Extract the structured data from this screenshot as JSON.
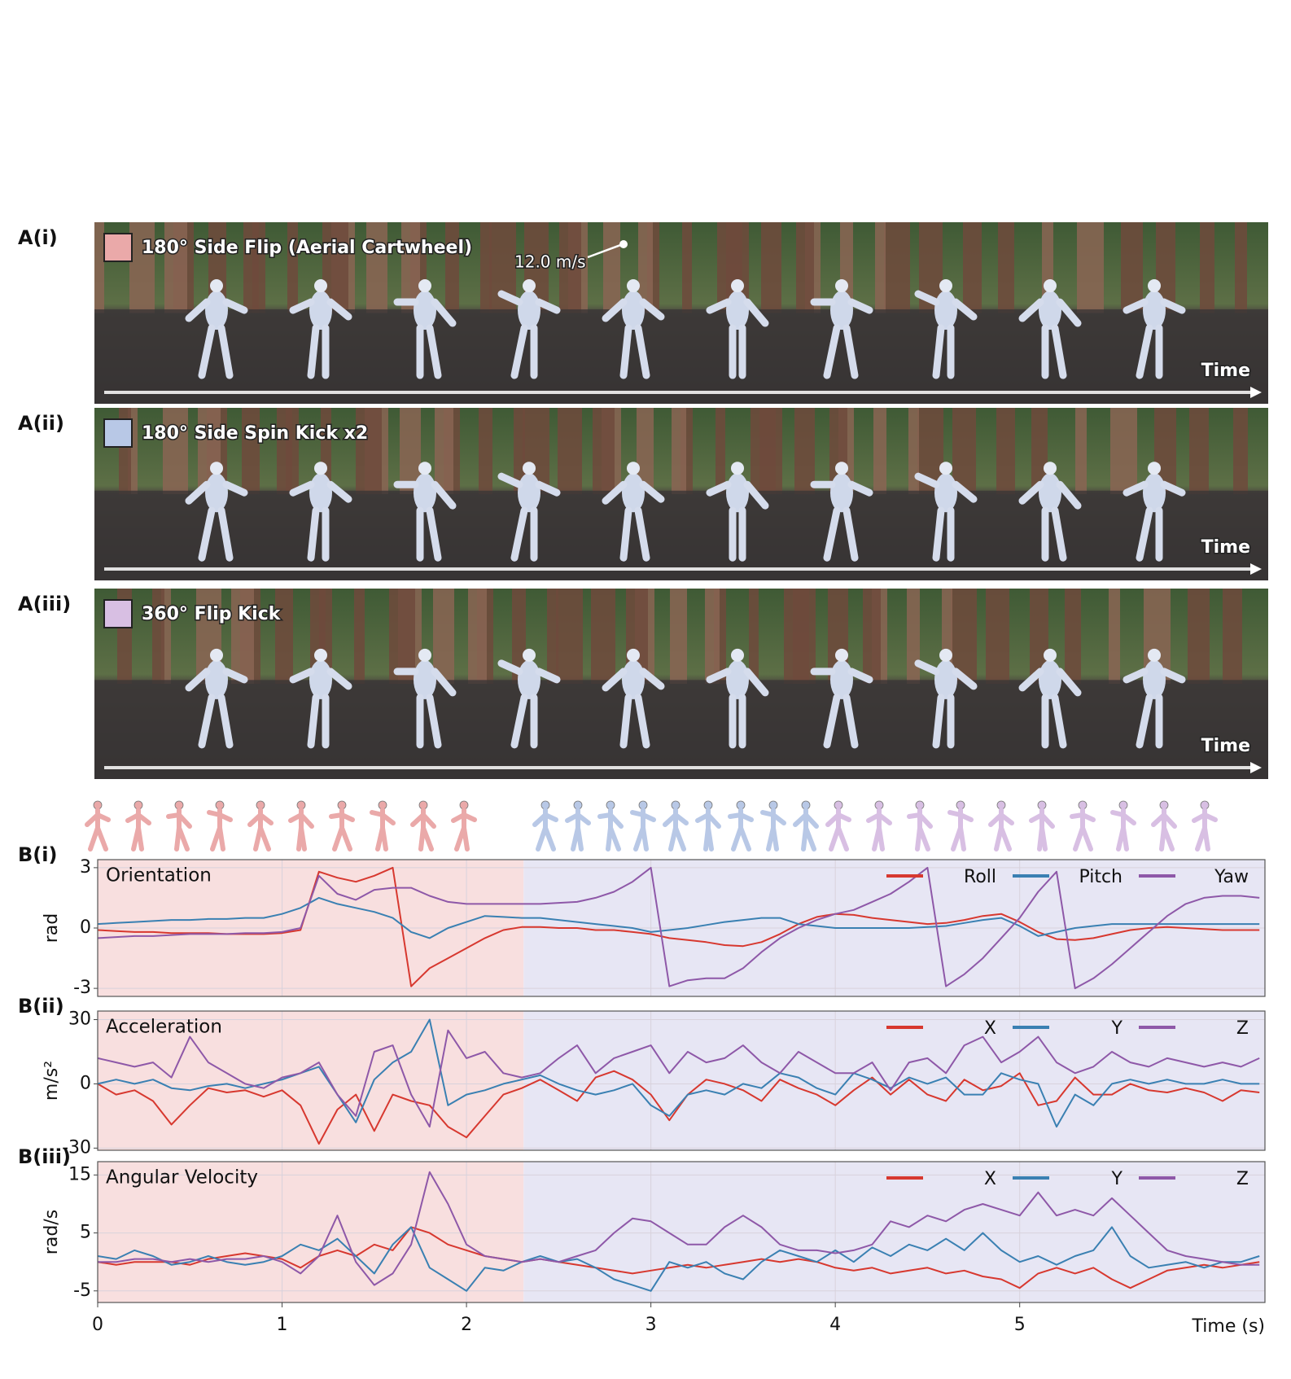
{
  "photo_panels": [
    {
      "label": "A(i)",
      "title": "180° Side Flip (Aerial Cartwheel)",
      "color": "#eaa9a9",
      "annotation": "12.0 m/s",
      "arrow_label": "Time"
    },
    {
      "label": "A(ii)",
      "title": "180° Side Spin Kick x2",
      "color": "#b8c8e6",
      "arrow_label": "Time"
    },
    {
      "label": "A(iii)",
      "title": "360° Flip Kick",
      "color": "#d8bfe3",
      "arrow_label": "Time"
    }
  ],
  "chart_data": [
    {
      "type": "line",
      "panel_label": "B(i)",
      "title": "Orientation",
      "y_label": "rad",
      "xlim": [
        0,
        6.33
      ],
      "ylim": [
        -3.4,
        3.4
      ],
      "xticks": [
        0,
        1,
        2,
        3,
        4,
        5
      ],
      "yticks": [
        -3,
        0,
        3
      ],
      "grid": true,
      "legend": "upper right",
      "shaded_spans": [
        {
          "from": 0,
          "to": 2.31,
          "color": "#f8dfdf"
        },
        {
          "from": 2.31,
          "to": 6.33,
          "color": "#e7e6f4"
        }
      ],
      "x": [
        0,
        0.1,
        0.2,
        0.3,
        0.4,
        0.5,
        0.6,
        0.7,
        0.8,
        0.9,
        1,
        1.1,
        1.2,
        1.3,
        1.4,
        1.5,
        1.6,
        1.7,
        1.8,
        1.9,
        2,
        2.1,
        2.2,
        2.3,
        2.4,
        2.5,
        2.6,
        2.7,
        2.8,
        2.9,
        3,
        3.1,
        3.2,
        3.3,
        3.4,
        3.5,
        3.6,
        3.7,
        3.8,
        3.9,
        4,
        4.1,
        4.2,
        4.3,
        4.4,
        4.5,
        4.6,
        4.7,
        4.8,
        4.9,
        5,
        5.1,
        5.2,
        5.3,
        5.4,
        5.5,
        5.6,
        5.7,
        5.8,
        5.9,
        6,
        6.1,
        6.2,
        6.3
      ],
      "series": [
        {
          "name": "Roll",
          "color": "#d7382f",
          "values": [
            -0.1,
            -0.15,
            -0.2,
            -0.2,
            -0.25,
            -0.25,
            -0.25,
            -0.3,
            -0.3,
            -0.3,
            -0.25,
            -0.1,
            2.8,
            2.5,
            2.3,
            2.6,
            3.0,
            -2.9,
            -2.0,
            -1.5,
            -1.0,
            -0.5,
            -0.1,
            0.05,
            0.05,
            0,
            0,
            -0.1,
            -0.1,
            -0.2,
            -0.3,
            -0.5,
            -0.6,
            -0.7,
            -0.85,
            -0.9,
            -0.7,
            -0.3,
            0.2,
            0.55,
            0.7,
            0.65,
            0.5,
            0.4,
            0.3,
            0.2,
            0.25,
            0.4,
            0.6,
            0.7,
            0.3,
            -0.2,
            -0.55,
            -0.6,
            -0.5,
            -0.3,
            -0.1,
            0,
            0.05,
            0,
            -0.05,
            -0.1,
            -0.1,
            -0.1
          ]
        },
        {
          "name": "Pitch",
          "color": "#3a80b2",
          "values": [
            0.2,
            0.25,
            0.3,
            0.35,
            0.4,
            0.4,
            0.45,
            0.45,
            0.5,
            0.5,
            0.7,
            1.0,
            1.5,
            1.2,
            1.0,
            0.8,
            0.5,
            -0.2,
            -0.5,
            0,
            0.3,
            0.6,
            0.55,
            0.5,
            0.5,
            0.4,
            0.3,
            0.2,
            0.1,
            0,
            -0.2,
            -0.1,
            0,
            0.15,
            0.3,
            0.4,
            0.5,
            0.5,
            0.2,
            0.1,
            0,
            0,
            0,
            0,
            0,
            0.05,
            0.1,
            0.25,
            0.4,
            0.5,
            0.1,
            -0.4,
            -0.2,
            0,
            0.1,
            0.2,
            0.2,
            0.2,
            0.2,
            0.2,
            0.2,
            0.2,
            0.2,
            0.2
          ]
        },
        {
          "name": "Yaw",
          "color": "#8e58a8",
          "values": [
            -0.5,
            -0.45,
            -0.4,
            -0.4,
            -0.35,
            -0.3,
            -0.3,
            -0.3,
            -0.25,
            -0.25,
            -0.2,
            0,
            2.6,
            1.7,
            1.4,
            1.9,
            2.0,
            2.0,
            1.6,
            1.3,
            1.2,
            1.2,
            1.2,
            1.2,
            1.2,
            1.25,
            1.3,
            1.5,
            1.8,
            2.3,
            3.0,
            -2.9,
            -2.6,
            -2.5,
            -2.5,
            -2.0,
            -1.2,
            -0.5,
            0,
            0.4,
            0.7,
            0.9,
            1.3,
            1.7,
            2.3,
            3.0,
            -2.9,
            -2.3,
            -1.5,
            -0.5,
            0.5,
            1.8,
            2.8,
            -3.0,
            -2.5,
            -1.8,
            -1.0,
            -0.2,
            0.6,
            1.2,
            1.5,
            1.6,
            1.6,
            1.5
          ]
        }
      ]
    },
    {
      "type": "line",
      "panel_label": "B(ii)",
      "title": "Acceleration",
      "y_label": "m/s²",
      "xlim": [
        0,
        6.33
      ],
      "ylim": [
        -31,
        34
      ],
      "xticks": [
        0,
        1,
        2,
        3,
        4,
        5
      ],
      "yticks": [
        -30,
        0,
        30
      ],
      "grid": true,
      "legend": "upper right",
      "shaded_spans": [
        {
          "from": 0,
          "to": 2.31,
          "color": "#f8dfdf"
        },
        {
          "from": 2.31,
          "to": 6.33,
          "color": "#e7e6f4"
        }
      ],
      "x": [
        0,
        0.1,
        0.2,
        0.3,
        0.4,
        0.5,
        0.6,
        0.7,
        0.8,
        0.9,
        1,
        1.1,
        1.2,
        1.3,
        1.4,
        1.5,
        1.6,
        1.7,
        1.8,
        1.9,
        2,
        2.1,
        2.2,
        2.3,
        2.4,
        2.5,
        2.6,
        2.7,
        2.8,
        2.9,
        3,
        3.1,
        3.2,
        3.3,
        3.4,
        3.5,
        3.6,
        3.7,
        3.8,
        3.9,
        4,
        4.1,
        4.2,
        4.3,
        4.4,
        4.5,
        4.6,
        4.7,
        4.8,
        4.9,
        5,
        5.1,
        5.2,
        5.3,
        5.4,
        5.5,
        5.6,
        5.7,
        5.8,
        5.9,
        6,
        6.1,
        6.2,
        6.3
      ],
      "series": [
        {
          "name": "X",
          "color": "#d7382f",
          "values": [
            0,
            -5,
            -3,
            -8,
            -19,
            -10,
            -2,
            -4,
            -3,
            -6,
            -3,
            -10,
            -28,
            -12,
            -5,
            -22,
            -5,
            -8,
            -10,
            -20,
            -25,
            -15,
            -5,
            -2,
            2,
            -3,
            -8,
            3,
            6,
            2,
            -5,
            -17,
            -5,
            2,
            0,
            -3,
            -8,
            2,
            -2,
            -5,
            -10,
            -3,
            3,
            -5,
            2,
            -5,
            -8,
            2,
            -3,
            -1,
            5,
            -10,
            -8,
            3,
            -5,
            -5,
            0,
            -3,
            -4,
            -2,
            -4,
            -8,
            -3,
            -4
          ]
        },
        {
          "name": "Y",
          "color": "#3a80b2",
          "values": [
            0,
            2,
            0,
            2,
            -2,
            -3,
            -1,
            0,
            -2,
            0,
            2,
            5,
            8,
            -5,
            -18,
            2,
            10,
            15,
            30,
            -10,
            -5,
            -3,
            0,
            2,
            4,
            0,
            -3,
            -5,
            -3,
            0,
            -10,
            -15,
            -5,
            -3,
            -5,
            0,
            -2,
            5,
            3,
            -2,
            -5,
            5,
            2,
            -2,
            3,
            0,
            3,
            -5,
            -5,
            5,
            2,
            0,
            -20,
            -5,
            -10,
            0,
            2,
            0,
            2,
            0,
            0,
            2,
            0,
            0
          ]
        },
        {
          "name": "Z",
          "color": "#8e58a8",
          "values": [
            12,
            10,
            8,
            10,
            3,
            22,
            10,
            5,
            0,
            -2,
            3,
            5,
            10,
            -5,
            -15,
            15,
            18,
            -5,
            -20,
            25,
            12,
            15,
            5,
            3,
            5,
            12,
            18,
            5,
            12,
            15,
            18,
            5,
            15,
            10,
            12,
            18,
            10,
            5,
            15,
            10,
            5,
            5,
            10,
            -3,
            10,
            12,
            5,
            18,
            22,
            10,
            15,
            22,
            10,
            5,
            8,
            15,
            10,
            8,
            12,
            10,
            8,
            10,
            8,
            12
          ]
        }
      ]
    },
    {
      "type": "line",
      "panel_label": "B(iii)",
      "title": "Angular Velocity",
      "y_label": "rad/s",
      "x_label": "Time (s)",
      "xlim": [
        0,
        6.33
      ],
      "ylim": [
        -7,
        17.3
      ],
      "xticks": [
        0,
        1,
        2,
        3,
        4,
        5
      ],
      "yticks": [
        -5,
        5,
        15
      ],
      "grid": true,
      "legend": "upper right",
      "shaded_spans": [
        {
          "from": 0,
          "to": 2.31,
          "color": "#f8dfdf"
        },
        {
          "from": 2.31,
          "to": 6.33,
          "color": "#e7e6f4"
        }
      ],
      "x": [
        0,
        0.1,
        0.2,
        0.3,
        0.4,
        0.5,
        0.6,
        0.7,
        0.8,
        0.9,
        1,
        1.1,
        1.2,
        1.3,
        1.4,
        1.5,
        1.6,
        1.7,
        1.8,
        1.9,
        2,
        2.1,
        2.2,
        2.3,
        2.4,
        2.5,
        2.6,
        2.7,
        2.8,
        2.9,
        3,
        3.1,
        3.2,
        3.3,
        3.4,
        3.5,
        3.6,
        3.7,
        3.8,
        3.9,
        4,
        4.1,
        4.2,
        4.3,
        4.4,
        4.5,
        4.6,
        4.7,
        4.8,
        4.9,
        5,
        5.1,
        5.2,
        5.3,
        5.4,
        5.5,
        5.6,
        5.7,
        5.8,
        5.9,
        6,
        6.1,
        6.2,
        6.3
      ],
      "series": [
        {
          "name": "X",
          "color": "#d7382f",
          "values": [
            0,
            -0.5,
            0,
            0,
            0,
            -0.5,
            0.5,
            1,
            1.5,
            1,
            0.5,
            -1,
            1,
            2,
            1,
            3,
            2,
            6,
            5,
            3,
            2,
            1,
            0.5,
            0,
            0.5,
            0,
            -0.5,
            -1,
            -1.5,
            -2,
            -1.5,
            -1,
            -0.5,
            -1,
            -0.5,
            0,
            0.5,
            0,
            0.5,
            0,
            -1,
            -1.5,
            -1,
            -2,
            -1.5,
            -1,
            -2,
            -1.5,
            -2.5,
            -3,
            -4.5,
            -2,
            -1,
            -2,
            -1,
            -3,
            -4.5,
            -3,
            -1.5,
            -1,
            -0.5,
            -1,
            -0.5,
            0
          ]
        },
        {
          "name": "Y",
          "color": "#3a80b2",
          "values": [
            1,
            0.5,
            2,
            1,
            -0.5,
            0,
            1,
            0,
            -0.5,
            0,
            1,
            3,
            2,
            4,
            1,
            -2,
            3,
            6,
            -1,
            -3,
            -5,
            -1,
            -1.5,
            0,
            1,
            0,
            0.5,
            -1,
            -3,
            -4,
            -5,
            0,
            -1,
            0,
            -2,
            -3,
            0,
            2,
            1,
            0,
            2,
            0,
            2.5,
            1,
            3,
            2,
            4,
            2,
            5,
            2,
            0,
            1,
            -0.5,
            1,
            2,
            6,
            1,
            -1,
            -0.5,
            0,
            -1,
            0,
            0,
            1
          ]
        },
        {
          "name": "Z",
          "color": "#8e58a8",
          "values": [
            0,
            0,
            0.5,
            0.5,
            0,
            0.5,
            0,
            0.5,
            0.5,
            1,
            0,
            -2,
            1,
            8,
            0,
            -4,
            -2,
            3,
            15.5,
            10,
            3,
            1,
            0.5,
            0,
            0.5,
            0,
            1,
            2,
            5,
            7.5,
            7,
            5,
            3,
            3,
            6,
            8,
            6,
            3,
            2,
            2,
            1.5,
            2,
            3,
            7,
            6,
            8,
            7,
            9,
            10,
            9,
            8,
            12,
            8,
            9,
            8,
            11,
            8,
            5,
            2,
            1,
            0.5,
            0,
            -0.5,
            -0.5
          ]
        }
      ]
    }
  ]
}
